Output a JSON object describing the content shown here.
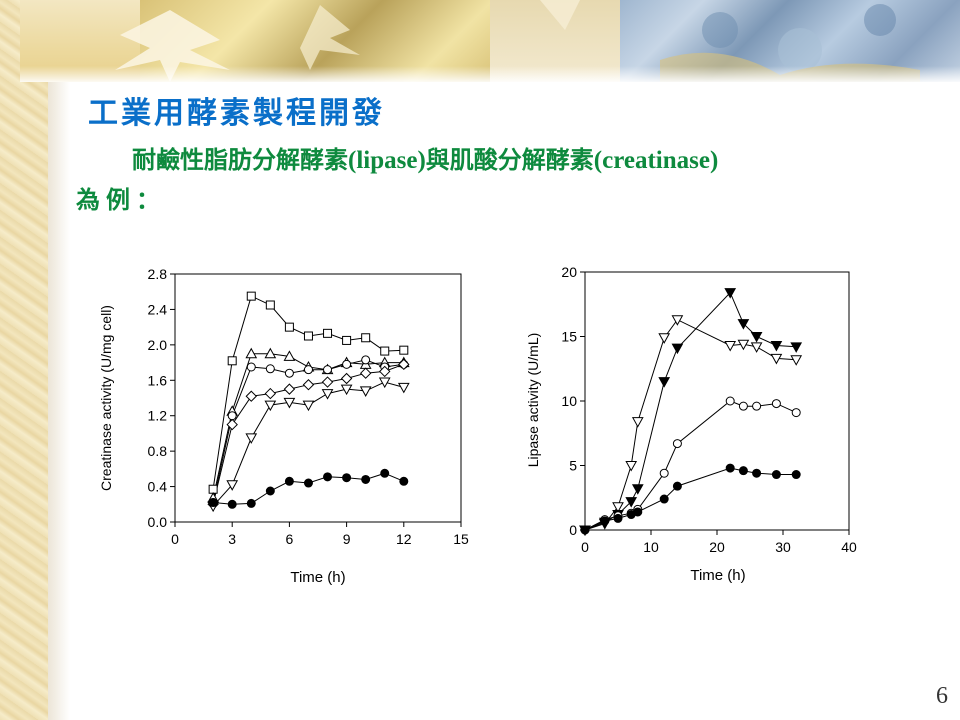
{
  "slide": {
    "title": "工業用酵素製程開發",
    "subtitle_zh1": "耐鹼性脂肪分解酵素",
    "subtitle_en1": "(lipase)",
    "subtitle_zh2": "與肌酸分解酵素",
    "subtitle_en2": "(creatinase)",
    "subtitle_line2": "為例：",
    "page_number": "6"
  },
  "chart_data": [
    {
      "type": "line",
      "ylabel": "Creatinase activity (U/mg cell)",
      "xlabel": "Time (h)",
      "xlim": [
        0,
        15
      ],
      "ylim": [
        0,
        2.8
      ],
      "xticks": [
        "0",
        "3",
        "6",
        "9",
        "12",
        "15"
      ],
      "yticks": [
        "0.0",
        "0.4",
        "0.8",
        "1.2",
        "1.6",
        "2.0",
        "2.4",
        "2.8"
      ],
      "series": [
        {
          "marker": "square-open",
          "x": [
            2,
            3,
            4,
            5,
            6,
            7,
            8,
            9,
            10,
            11,
            12
          ],
          "y": [
            0.37,
            1.82,
            2.55,
            2.45,
            2.2,
            2.1,
            2.13,
            2.05,
            2.08,
            1.93,
            1.94
          ]
        },
        {
          "marker": "triangle-up-open",
          "x": [
            2,
            3,
            4,
            5,
            6,
            7,
            8,
            9,
            10,
            11,
            12
          ],
          "y": [
            0.27,
            1.25,
            1.9,
            1.9,
            1.87,
            1.75,
            1.72,
            1.8,
            1.78,
            1.8,
            1.8
          ]
        },
        {
          "marker": "circle-open",
          "x": [
            2,
            3,
            4,
            5,
            6,
            7,
            8,
            9,
            10,
            11,
            12
          ],
          "y": [
            0.22,
            1.2,
            1.75,
            1.73,
            1.68,
            1.72,
            1.72,
            1.78,
            1.83,
            1.75,
            1.78
          ]
        },
        {
          "marker": "diamond-open",
          "x": [
            2,
            3,
            4,
            5,
            6,
            7,
            8,
            9,
            10,
            11,
            12
          ],
          "y": [
            0.2,
            1.1,
            1.42,
            1.45,
            1.5,
            1.55,
            1.58,
            1.62,
            1.68,
            1.7,
            1.78
          ]
        },
        {
          "marker": "triangle-down-open",
          "x": [
            2,
            3,
            4,
            5,
            6,
            7,
            8,
            9,
            10,
            11,
            12
          ],
          "y": [
            0.18,
            0.42,
            0.95,
            1.32,
            1.35,
            1.32,
            1.45,
            1.5,
            1.48,
            1.58,
            1.52
          ]
        },
        {
          "marker": "circle-filled",
          "x": [
            2,
            3,
            4,
            5,
            6,
            7,
            8,
            9,
            10,
            11,
            12
          ],
          "y": [
            0.22,
            0.2,
            0.21,
            0.35,
            0.46,
            0.44,
            0.51,
            0.5,
            0.48,
            0.55,
            0.46
          ]
        }
      ]
    },
    {
      "type": "line",
      "ylabel": "Lipase activity (U/mL)",
      "xlabel": "Time (h)",
      "xlim": [
        0,
        40
      ],
      "ylim": [
        0,
        20
      ],
      "xticks": [
        "0",
        "10",
        "20",
        "30",
        "40"
      ],
      "yticks": [
        "0",
        "5",
        "10",
        "15",
        "20"
      ],
      "series": [
        {
          "marker": "triangle-down-open",
          "x": [
            0,
            3,
            5,
            7,
            8,
            12,
            14,
            22,
            24,
            26,
            29,
            32
          ],
          "y": [
            0,
            0.5,
            1.8,
            5,
            8.4,
            14.9,
            16.3,
            14.3,
            14.4,
            14.2,
            13.3,
            13.2
          ]
        },
        {
          "marker": "triangle-down-filled",
          "x": [
            0,
            3,
            5,
            7,
            8,
            12,
            14,
            22,
            24,
            26,
            29,
            32
          ],
          "y": [
            0,
            0.6,
            1.2,
            2.2,
            3.2,
            11.5,
            14.1,
            18.4,
            16,
            15,
            14.3,
            14.2
          ]
        },
        {
          "marker": "circle-open",
          "x": [
            0,
            3,
            5,
            7,
            8,
            12,
            14,
            22,
            24,
            26,
            29,
            32
          ],
          "y": [
            0,
            0.8,
            1.1,
            1.3,
            1.6,
            4.4,
            6.7,
            10,
            9.6,
            9.6,
            9.8,
            9.1
          ]
        },
        {
          "marker": "circle-filled",
          "x": [
            0,
            3,
            5,
            7,
            8,
            12,
            14,
            22,
            24,
            26,
            29,
            32
          ],
          "y": [
            0,
            0.7,
            0.9,
            1.2,
            1.4,
            2.4,
            3.4,
            4.8,
            4.6,
            4.4,
            4.3,
            4.3
          ]
        }
      ]
    }
  ]
}
